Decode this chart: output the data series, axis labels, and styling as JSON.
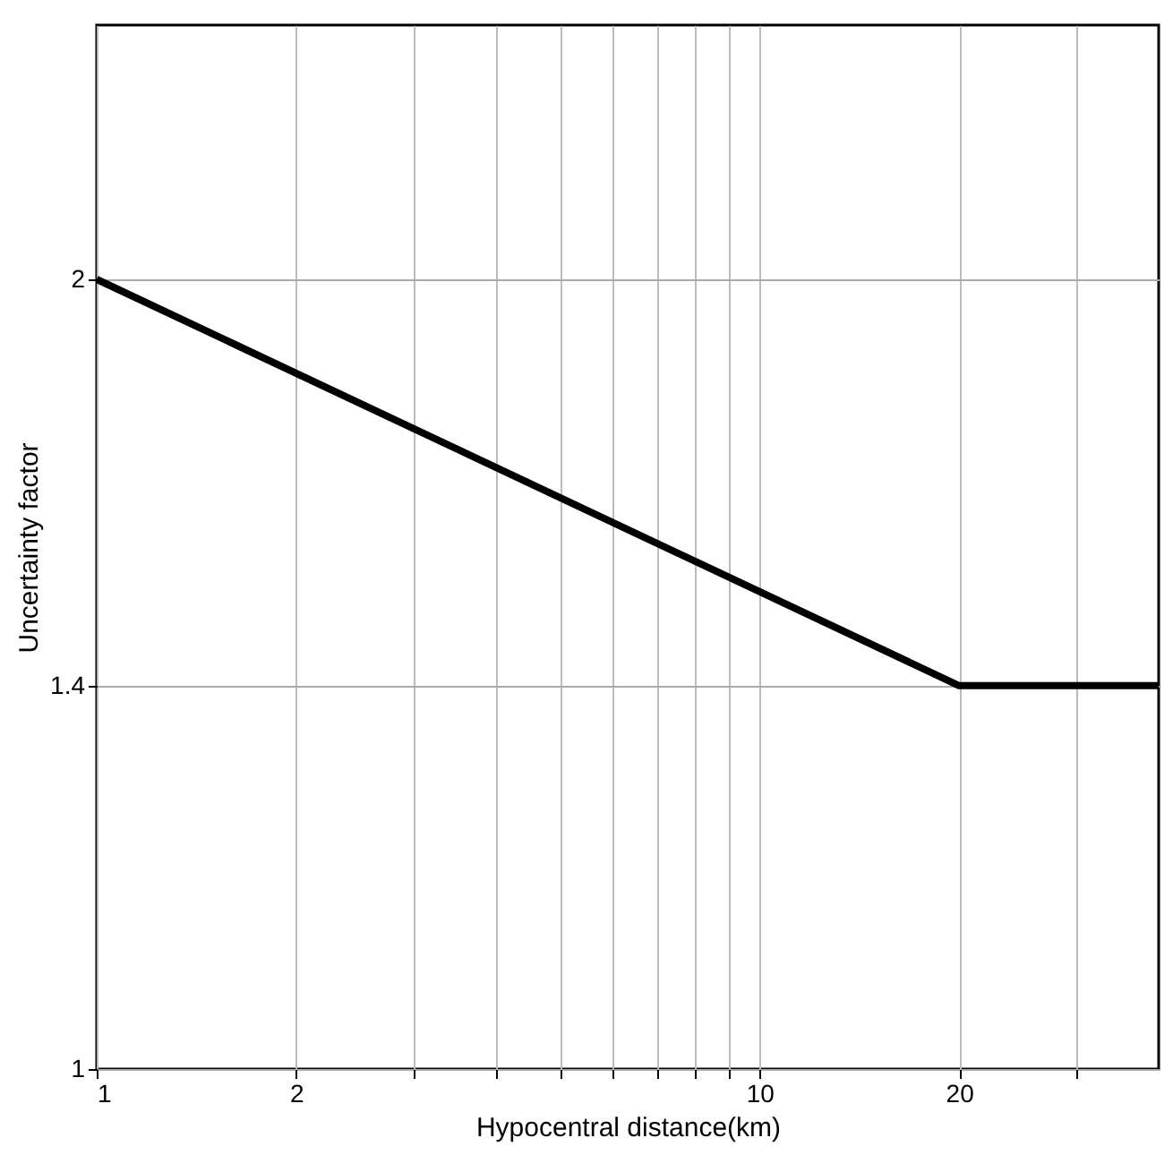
{
  "chart_data": {
    "type": "line",
    "xlabel": "Hypocentral distance(km)",
    "ylabel": "Uncertainty factor",
    "log": "xy",
    "grid": true,
    "x": [
      1,
      20,
      40
    ],
    "series": [
      {
        "color": "#000000",
        "values": [
          2,
          1.4,
          1.4
        ]
      }
    ],
    "xlim": [
      1,
      40
    ],
    "xticks": [
      1,
      2,
      {
        "value": 3,
        "label": null
      },
      {
        "value": 4,
        "label": null
      },
      {
        "value": 5,
        "label": null
      },
      {
        "value": 6,
        "label": null
      },
      {
        "value": 7,
        "label": null
      },
      {
        "value": 8,
        "label": null
      },
      {
        "value": 9,
        "label": null
      },
      10,
      20,
      {
        "value": 30,
        "label": null
      }
    ],
    "ylim": [
      1,
      2.5
    ],
    "yticks": [
      1,
      1.4,
      2
    ]
  }
}
